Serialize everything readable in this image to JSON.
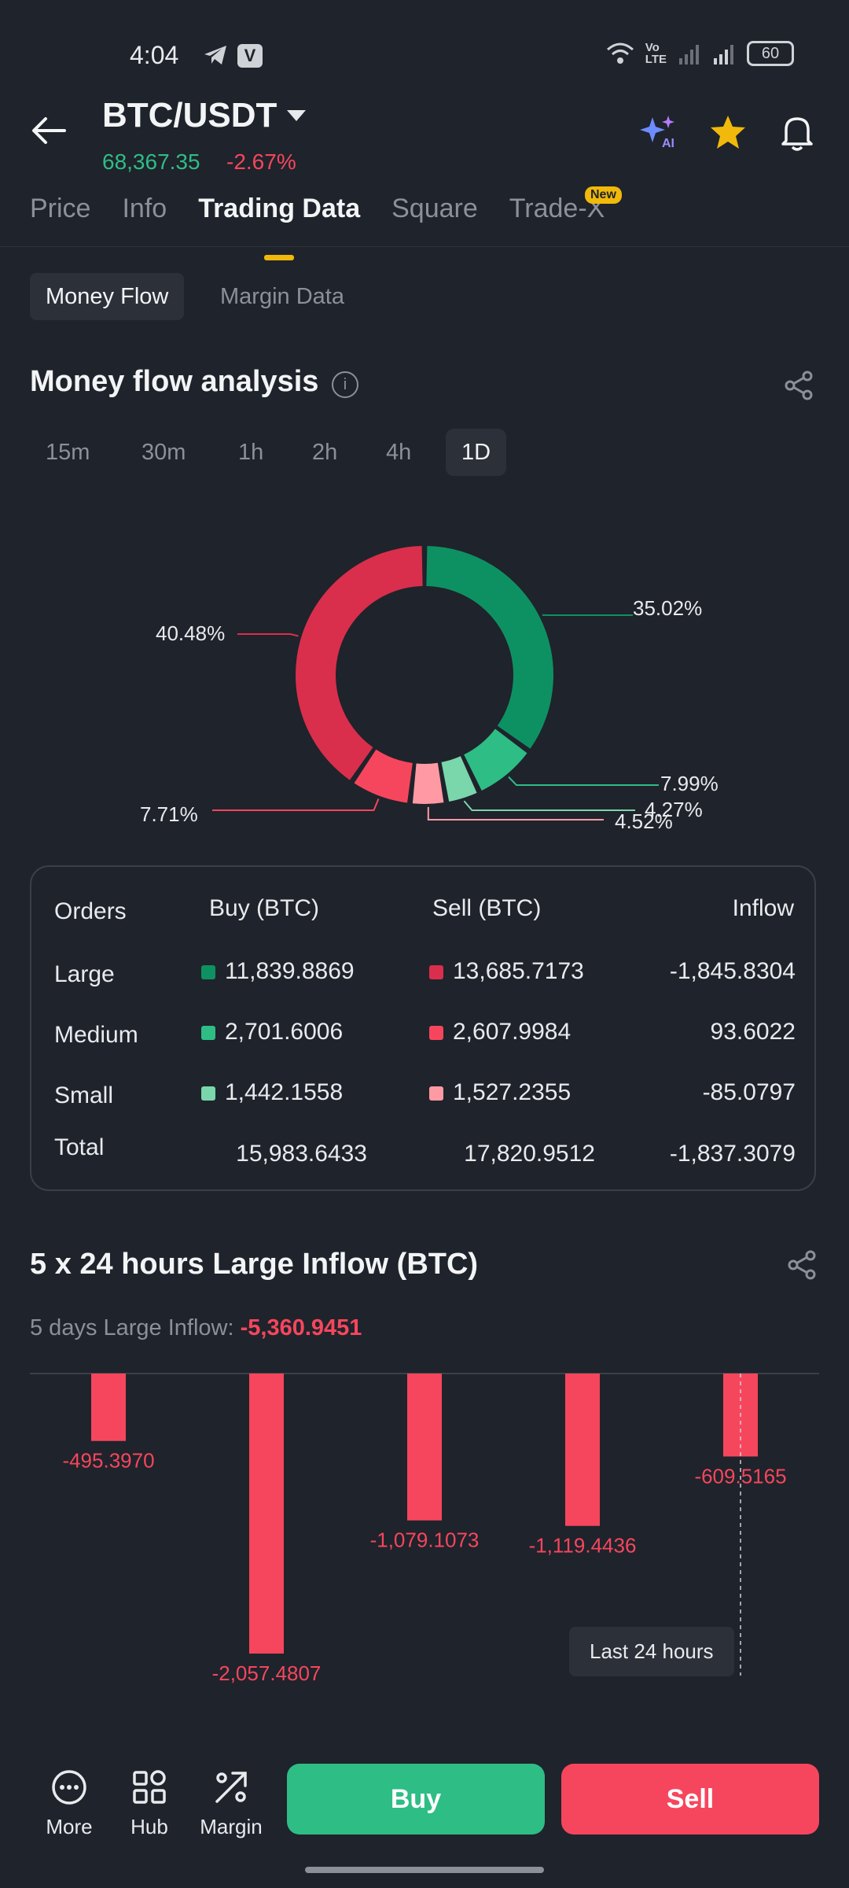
{
  "status": {
    "time": "4:04",
    "battery": "60"
  },
  "header": {
    "pair": "BTC/USDT",
    "price": "68,367.35",
    "change": "-2.67%"
  },
  "tabs": [
    {
      "label": "Price"
    },
    {
      "label": "Info"
    },
    {
      "label": "Trading Data"
    },
    {
      "label": "Square"
    },
    {
      "label": "Trade-X"
    }
  ],
  "new_badge": "New",
  "subtabs": [
    {
      "label": "Money Flow"
    },
    {
      "label": "Margin Data"
    }
  ],
  "money_flow": {
    "title": "Money flow analysis",
    "ranges": [
      {
        "label": "15m"
      },
      {
        "label": "30m"
      },
      {
        "label": "1h"
      },
      {
        "label": "2h"
      },
      {
        "label": "4h"
      },
      {
        "label": "1D"
      }
    ],
    "selected_range": "1D"
  },
  "chart_data": [
    {
      "type": "pie",
      "style": "donut",
      "slices": [
        {
          "label": "Large Buy",
          "value": 35.02,
          "text": "35.02%",
          "color": "#0e9162"
        },
        {
          "label": "Medium Buy",
          "value": 7.99,
          "text": "7.99%",
          "color": "#2ebd85"
        },
        {
          "label": "Small Buy",
          "value": 4.27,
          "text": "4.27%",
          "color": "#7ad6ab"
        },
        {
          "label": "Small Sell",
          "value": 4.52,
          "text": "4.52%",
          "color": "#ff9aa4"
        },
        {
          "label": "Medium Sell",
          "value": 7.71,
          "text": "7.71%",
          "color": "#f6465d"
        },
        {
          "label": "Large Sell",
          "value": 40.48,
          "text": "40.48%",
          "color": "#d92f4c"
        }
      ]
    },
    {
      "type": "bar",
      "title": "5 x 24 hours Large Inflow (BTC)",
      "values": [
        -495.397,
        -2057.4807,
        -1079.1073,
        -1119.4436,
        -609.5165
      ],
      "labels": [
        "-495.3970",
        "-2,057.4807",
        "-1,079.1073",
        "-1,119.4436",
        "-609.5165"
      ],
      "ylim": [
        -2057.4807,
        0
      ],
      "color": "#f6465d"
    }
  ],
  "table": {
    "headers": {
      "orders": "Orders",
      "buy": "Buy (BTC)",
      "sell": "Sell (BTC)",
      "inflow": "Inflow"
    },
    "rows": [
      {
        "label": "Large",
        "buy": "11,839.8869",
        "sell": "13,685.7173",
        "inflow": "-1,845.8304",
        "buy_color": "#0e9162",
        "sell_color": "#d92f4c"
      },
      {
        "label": "Medium",
        "buy": "2,701.6006",
        "sell": "2,607.9984",
        "inflow": "93.6022",
        "buy_color": "#2ebd85",
        "sell_color": "#f6465d"
      },
      {
        "label": "Small",
        "buy": "1,442.1558",
        "sell": "1,527.2355",
        "inflow": "-85.0797",
        "buy_color": "#7ad6ab",
        "sell_color": "#ff9aa4"
      }
    ],
    "total": {
      "label": "Total",
      "buy": "15,983.6433",
      "sell": "17,820.9512",
      "inflow": "-1,837.3079"
    }
  },
  "inflow": {
    "title": "5 x 24 hours Large Inflow (BTC)",
    "subtitle_label": "5 days Large Inflow:",
    "subtitle_value": "-5,360.9451",
    "tooltip": "Last 24 hours"
  },
  "bottom": {
    "more": "More",
    "hub": "Hub",
    "margin": "Margin",
    "buy": "Buy",
    "sell": "Sell"
  }
}
